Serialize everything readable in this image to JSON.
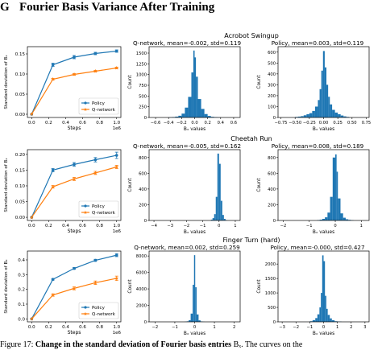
{
  "section": {
    "number": "G",
    "title": "Fourier Basis Variance After Training"
  },
  "colors": {
    "policy": "#1f77b4",
    "qnet": "#ff7f0e",
    "hist": "#1f77b4"
  },
  "rows": [
    {
      "env": "Acrobot Swingup",
      "line_chart": {
        "type": "line",
        "ylabel": "Standard deviation of Bₓ",
        "xlabel": "Steps",
        "x_offset_label": "1e6",
        "xticks": [
          0.0,
          0.2,
          0.4,
          0.6,
          0.8,
          1.0
        ],
        "xtick_labels": [
          "0.0",
          "0.2",
          "0.4",
          "0.6",
          "0.8",
          "1.0"
        ],
        "yticks": [
          0.0,
          0.05,
          0.1,
          0.15
        ],
        "ytick_labels": [
          "0.00",
          "0.05",
          "0.10",
          "0.15"
        ],
        "xlim": [
          -0.05,
          1.05
        ],
        "ylim": [
          -0.008,
          0.168
        ],
        "legend": [
          "Policy",
          "Q-network"
        ],
        "x": [
          0.0,
          0.25,
          0.5,
          0.75,
          1.0
        ],
        "series": [
          {
            "name": "Policy",
            "values": [
              0.0,
              0.123,
              0.142,
              0.151,
              0.157
            ],
            "err": [
              0,
              0.004,
              0.004,
              0.003,
              0.003
            ]
          },
          {
            "name": "Q-network",
            "values": [
              0.0,
              0.087,
              0.099,
              0.107,
              0.115
            ],
            "err": [
              0,
              0.002,
              0.002,
              0.002,
              0.002
            ]
          }
        ]
      },
      "hists": [
        {
          "type": "bar",
          "title": "Q-network, mean=-0.002, std=0.119",
          "ylabel": "Count",
          "xlabel": "Bₓ values",
          "xlim": [
            -0.7,
            0.7
          ],
          "ylim": [
            0,
            1650
          ],
          "xticks": [
            -0.6,
            -0.4,
            -0.2,
            0.0,
            0.2,
            0.4,
            0.6
          ],
          "xtick_labels": [
            "−0.6",
            "−0.4",
            "−0.2",
            "0.0",
            "0.2",
            "0.4",
            "0.6"
          ],
          "yticks": [
            0,
            250,
            500,
            750,
            1000,
            1250,
            1500
          ],
          "ytick_labels": [
            "0",
            "250",
            "500",
            "750",
            "1000",
            "1250",
            "1500"
          ],
          "bins": [
            [
              -0.4,
              -0.35,
              5
            ],
            [
              -0.35,
              -0.3,
              10
            ],
            [
              -0.3,
              -0.25,
              20
            ],
            [
              -0.25,
              -0.2,
              40
            ],
            [
              -0.2,
              -0.15,
              90
            ],
            [
              -0.15,
              -0.1,
              230
            ],
            [
              -0.1,
              -0.05,
              480
            ],
            [
              -0.05,
              -0.02,
              1050
            ],
            [
              -0.02,
              0.0,
              1560
            ],
            [
              0.0,
              0.02,
              1400
            ],
            [
              0.02,
              0.05,
              950
            ],
            [
              0.05,
              0.1,
              430
            ],
            [
              0.1,
              0.15,
              200
            ],
            [
              0.15,
              0.2,
              80
            ],
            [
              0.2,
              0.25,
              35
            ],
            [
              0.25,
              0.3,
              15
            ],
            [
              0.3,
              0.35,
              8
            ],
            [
              0.35,
              0.4,
              4
            ]
          ]
        },
        {
          "type": "bar",
          "title": "Policy, mean=0.003, std=0.119",
          "ylabel": "Count",
          "xlabel": "Bₓ values",
          "xlim": [
            -0.8,
            0.8
          ],
          "ylim": [
            0,
            650
          ],
          "xticks": [
            -0.75,
            -0.5,
            -0.25,
            0.0,
            0.25,
            0.5,
            0.75
          ],
          "xtick_labels": [
            "−0.75",
            "−0.50",
            "−0.25",
            "0.00",
            "0.25",
            "0.50",
            "0.75"
          ],
          "yticks": [
            0,
            100,
            200,
            300,
            400,
            500,
            600
          ],
          "ytick_labels": [
            "0",
            "100",
            "200",
            "300",
            "400",
            "500",
            "600"
          ],
          "bins": [
            [
              -0.5,
              -0.45,
              5
            ],
            [
              -0.45,
              -0.4,
              8
            ],
            [
              -0.4,
              -0.35,
              12
            ],
            [
              -0.35,
              -0.3,
              20
            ],
            [
              -0.3,
              -0.25,
              30
            ],
            [
              -0.25,
              -0.2,
              40
            ],
            [
              -0.2,
              -0.15,
              60
            ],
            [
              -0.15,
              -0.1,
              100
            ],
            [
              -0.1,
              -0.07,
              160
            ],
            [
              -0.07,
              -0.04,
              260
            ],
            [
              -0.04,
              -0.01,
              430
            ],
            [
              -0.01,
              0.02,
              610
            ],
            [
              0.02,
              0.05,
              460
            ],
            [
              0.05,
              0.08,
              300
            ],
            [
              0.08,
              0.11,
              190
            ],
            [
              0.11,
              0.15,
              120
            ],
            [
              0.15,
              0.2,
              70
            ],
            [
              0.2,
              0.25,
              45
            ],
            [
              0.25,
              0.3,
              30
            ],
            [
              0.3,
              0.35,
              18
            ],
            [
              0.35,
              0.4,
              10
            ],
            [
              0.4,
              0.45,
              5
            ]
          ]
        }
      ]
    },
    {
      "env": "Cheetah Run",
      "line_chart": {
        "type": "line",
        "ylabel": "Standard deviation of Bₓ",
        "xlabel": "Steps",
        "x_offset_label": "1e6",
        "xticks": [
          0.0,
          0.2,
          0.4,
          0.6,
          0.8,
          1.0
        ],
        "xtick_labels": [
          "0.0",
          "0.2",
          "0.4",
          "0.6",
          "0.8",
          "1.0"
        ],
        "yticks": [
          0.0,
          0.05,
          0.1,
          0.15,
          0.2
        ],
        "ytick_labels": [
          "0.00",
          "0.05",
          "0.10",
          "0.15",
          "0.20"
        ],
        "xlim": [
          -0.05,
          1.05
        ],
        "ylim": [
          -0.01,
          0.215
        ],
        "legend": [
          "Policy",
          "Q-network"
        ],
        "x": [
          0.0,
          0.25,
          0.5,
          0.75,
          1.0
        ],
        "series": [
          {
            "name": "Policy",
            "values": [
              0.0,
              0.15,
              0.168,
              0.183,
              0.197
            ],
            "err": [
              0,
              0.005,
              0.006,
              0.007,
              0.01
            ]
          },
          {
            "name": "Q-network",
            "values": [
              0.0,
              0.097,
              0.122,
              0.141,
              0.16
            ],
            "err": [
              0,
              0.004,
              0.005,
              0.005,
              0.005
            ]
          }
        ]
      },
      "hists": [
        {
          "type": "bar",
          "title": "Q-network, mean=-0.005, std=0.162",
          "ylabel": "Count",
          "xlabel": "Bₓ values",
          "xlim": [
            -4.3,
            1.3
          ],
          "ylim": [
            0,
            900
          ],
          "xticks": [
            -4,
            -3,
            -2,
            -1,
            0,
            1
          ],
          "xtick_labels": [
            "−4",
            "−3",
            "−2",
            "−1",
            "0",
            "1"
          ],
          "yticks": [
            0,
            200,
            400,
            600,
            800
          ],
          "ytick_labels": [
            "0",
            "200",
            "400",
            "600",
            "800"
          ],
          "bins": [
            [
              -0.5,
              -0.4,
              10
            ],
            [
              -0.4,
              -0.3,
              30
            ],
            [
              -0.3,
              -0.2,
              80
            ],
            [
              -0.2,
              -0.1,
              300
            ],
            [
              -0.1,
              0.0,
              850
            ],
            [
              0.0,
              0.1,
              720
            ],
            [
              0.1,
              0.2,
              250
            ],
            [
              0.2,
              0.3,
              70
            ],
            [
              0.3,
              0.4,
              20
            ],
            [
              0.4,
              0.5,
              5
            ]
          ]
        },
        {
          "type": "bar",
          "title": "Policy, mean=0.008, std=0.189",
          "ylabel": "Count",
          "xlabel": "Bₓ values",
          "xlim": [
            -2.2,
            1.3
          ],
          "ylim": [
            0,
            900
          ],
          "xticks": [
            -2,
            -1,
            0,
            1
          ],
          "xtick_labels": [
            "−2",
            "−1",
            "0",
            "1"
          ],
          "yticks": [
            0,
            200,
            400,
            600,
            800
          ],
          "ytick_labels": [
            "0",
            "200",
            "400",
            "600",
            "800"
          ],
          "bins": [
            [
              -0.7,
              -0.6,
              5
            ],
            [
              -0.6,
              -0.5,
              10
            ],
            [
              -0.5,
              -0.4,
              20
            ],
            [
              -0.4,
              -0.3,
              40
            ],
            [
              -0.3,
              -0.2,
              100
            ],
            [
              -0.2,
              -0.1,
              300
            ],
            [
              -0.1,
              0.0,
              800
            ],
            [
              0.0,
              0.05,
              840
            ],
            [
              0.05,
              0.1,
              620
            ],
            [
              0.1,
              0.2,
              280
            ],
            [
              0.2,
              0.3,
              90
            ],
            [
              0.3,
              0.4,
              35
            ],
            [
              0.4,
              0.5,
              15
            ],
            [
              0.5,
              0.6,
              8
            ],
            [
              0.6,
              0.7,
              4
            ]
          ]
        }
      ]
    },
    {
      "env": "Finger Turn (hard)",
      "line_chart": {
        "type": "line",
        "ylabel": "Standard deviation of Bₓ",
        "xlabel": "Steps",
        "x_offset_label": "1e6",
        "xticks": [
          0.0,
          0.2,
          0.4,
          0.6,
          0.8,
          1.0
        ],
        "xtick_labels": [
          "0.0",
          "0.2",
          "0.4",
          "0.6",
          "0.8",
          "1.0"
        ],
        "yticks": [
          0.0,
          0.1,
          0.2,
          0.3,
          0.4
        ],
        "ytick_labels": [
          "0.0",
          "0.1",
          "0.2",
          "0.3",
          "0.4"
        ],
        "xlim": [
          -0.05,
          1.05
        ],
        "ylim": [
          -0.02,
          0.46
        ],
        "legend": [
          "Policy",
          "Q-network"
        ],
        "x": [
          0.0,
          0.25,
          0.5,
          0.75,
          1.0
        ],
        "series": [
          {
            "name": "Policy",
            "values": [
              0.0,
              0.268,
              0.342,
              0.397,
              0.432
            ],
            "err": [
              0,
              0.005,
              0.006,
              0.007,
              0.01
            ]
          },
          {
            "name": "Q-network",
            "values": [
              0.0,
              0.162,
              0.207,
              0.245,
              0.275
            ],
            "err": [
              0,
              0.008,
              0.01,
              0.012,
              0.015
            ]
          }
        ]
      },
      "hists": [
        {
          "type": "bar",
          "title": "Q-network, mean=0.002, std=0.259",
          "ylabel": "Count",
          "xlabel": "Bₓ values",
          "xlim": [
            -2.3,
            2.3
          ],
          "ylim": [
            0,
            8600
          ],
          "xticks": [
            -2,
            -1,
            0,
            1,
            2
          ],
          "xtick_labels": [
            "−2",
            "−1",
            "0",
            "1",
            "2"
          ],
          "yticks": [
            0,
            2000,
            4000,
            6000,
            8000
          ],
          "ytick_labels": [
            "0",
            "2000",
            "4000",
            "6000",
            "8000"
          ],
          "bins": [
            [
              -0.5,
              -0.4,
              20
            ],
            [
              -0.4,
              -0.3,
              60
            ],
            [
              -0.3,
              -0.2,
              200
            ],
            [
              -0.2,
              -0.1,
              1000
            ],
            [
              -0.1,
              -0.03,
              4500
            ],
            [
              -0.03,
              0.03,
              8100
            ],
            [
              0.03,
              0.1,
              4200
            ],
            [
              0.1,
              0.2,
              900
            ],
            [
              0.2,
              0.3,
              180
            ],
            [
              0.3,
              0.4,
              50
            ],
            [
              0.4,
              0.5,
              15
            ]
          ]
        },
        {
          "type": "bar",
          "title": "Policy, mean=-0.000, std=0.427",
          "ylabel": "Count",
          "xlabel": "Bₓ values",
          "xlim": [
            -3.3,
            3.3
          ],
          "ylim": [
            0,
            2450
          ],
          "xticks": [
            -3,
            -2,
            -1,
            0,
            1,
            2,
            3
          ],
          "xtick_labels": [
            "−3",
            "−2",
            "−1",
            "0",
            "1",
            "2",
            "3"
          ],
          "yticks": [
            0,
            500,
            1000,
            1500,
            2000
          ],
          "ytick_labels": [
            "0",
            "500",
            "1000",
            "1500",
            "2000"
          ],
          "bins": [
            [
              -1.0,
              -0.8,
              20
            ],
            [
              -0.8,
              -0.6,
              60
            ],
            [
              -0.6,
              -0.45,
              130
            ],
            [
              -0.45,
              -0.3,
              260
            ],
            [
              -0.3,
              -0.2,
              500
            ],
            [
              -0.2,
              -0.1,
              1000
            ],
            [
              -0.1,
              0.0,
              2300
            ],
            [
              0.0,
              0.1,
              2100
            ],
            [
              0.1,
              0.2,
              900
            ],
            [
              0.2,
              0.3,
              450
            ],
            [
              0.3,
              0.45,
              240
            ],
            [
              0.45,
              0.6,
              120
            ],
            [
              0.6,
              0.8,
              55
            ],
            [
              0.8,
              1.0,
              20
            ],
            [
              1.0,
              1.3,
              8
            ]
          ]
        }
      ]
    }
  ],
  "caption": {
    "label": "Figure 17:",
    "bold_text": "Change in the standard deviation of Fourier basis entries",
    "rest": "Bₓ. The curves on the"
  }
}
